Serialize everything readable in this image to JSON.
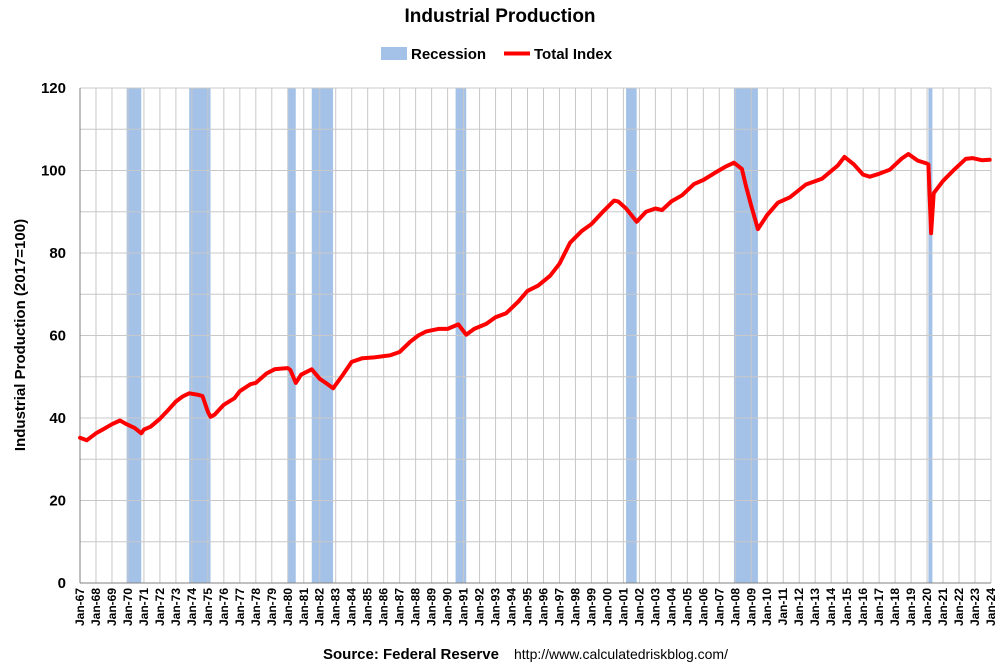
{
  "chart_data": {
    "type": "line",
    "title": "Industrial Production",
    "ylabel": "Industrial Production (2017=100)",
    "xlabel": "",
    "ylim": [
      0,
      120
    ],
    "yticks": [
      0,
      20,
      40,
      60,
      80,
      100,
      120
    ],
    "x_tick_labels": [
      "Jan-67",
      "Jan-68",
      "Jan-69",
      "Jan-70",
      "Jan-71",
      "Jan-72",
      "Jan-73",
      "Jan-74",
      "Jan-75",
      "Jan-76",
      "Jan-77",
      "Jan-78",
      "Jan-79",
      "Jan-80",
      "Jan-81",
      "Jan-82",
      "Jan-83",
      "Jan-84",
      "Jan-85",
      "Jan-86",
      "Jan-87",
      "Jan-88",
      "Jan-89",
      "Jan-90",
      "Jan-91",
      "Jan-92",
      "Jan-93",
      "Jan-94",
      "Jan-95",
      "Jan-96",
      "Jan-97",
      "Jan-98",
      "Jan-99",
      "Jan-00",
      "Jan-01",
      "Jan-02",
      "Jan-03",
      "Jan-04",
      "Jan-05",
      "Jan-06",
      "Jan-07",
      "Jan-08",
      "Jan-09",
      "Jan-10",
      "Jan-11",
      "Jan-12",
      "Jan-13",
      "Jan-14",
      "Jan-15",
      "Jan-16",
      "Jan-17",
      "Jan-18",
      "Jan-19",
      "Jan-20",
      "Jan-21",
      "Jan-22",
      "Jan-23",
      "Jan-24"
    ],
    "grid": true,
    "legend_position": "top-center",
    "legend": [
      {
        "label": "Recession",
        "color": "#a4c2e8",
        "kind": "box"
      },
      {
        "label": "Total Index",
        "color": "#ff0000",
        "kind": "line"
      }
    ],
    "recessions": [
      {
        "start": "1969-12",
        "end": "1970-11"
      },
      {
        "start": "1973-11",
        "end": "1975-03"
      },
      {
        "start": "1980-01",
        "end": "1980-07"
      },
      {
        "start": "1981-07",
        "end": "1982-11"
      },
      {
        "start": "1990-07",
        "end": "1991-03"
      },
      {
        "start": "2001-03",
        "end": "2001-11"
      },
      {
        "start": "2007-12",
        "end": "2009-06"
      },
      {
        "start": "2020-02",
        "end": "2020-04"
      }
    ],
    "series": [
      {
        "name": "Total Index",
        "color": "#ff0000",
        "points": [
          [
            "1967-01",
            35.2
          ],
          [
            "1967-06",
            34.6
          ],
          [
            "1968-01",
            36.3
          ],
          [
            "1968-06",
            37.2
          ],
          [
            "1969-01",
            38.5
          ],
          [
            "1969-07",
            39.4
          ],
          [
            "1969-12",
            38.5
          ],
          [
            "1970-06",
            37.6
          ],
          [
            "1970-11",
            36.3
          ],
          [
            "1971-01",
            37.2
          ],
          [
            "1971-06",
            37.9
          ],
          [
            "1972-01",
            39.8
          ],
          [
            "1972-06",
            41.5
          ],
          [
            "1973-01",
            44.0
          ],
          [
            "1973-06",
            45.2
          ],
          [
            "1973-11",
            46.0
          ],
          [
            "1974-06",
            45.6
          ],
          [
            "1974-09",
            45.3
          ],
          [
            "1975-01",
            41.5
          ],
          [
            "1975-03",
            40.3
          ],
          [
            "1975-06",
            40.8
          ],
          [
            "1976-01",
            43.2
          ],
          [
            "1976-09",
            44.8
          ],
          [
            "1977-01",
            46.5
          ],
          [
            "1977-09",
            48.2
          ],
          [
            "1978-01",
            48.5
          ],
          [
            "1978-09",
            50.8
          ],
          [
            "1979-03",
            51.8
          ],
          [
            "1979-09",
            52.0
          ],
          [
            "1980-01",
            52.1
          ],
          [
            "1980-03",
            51.6
          ],
          [
            "1980-07",
            48.5
          ],
          [
            "1980-11",
            50.5
          ],
          [
            "1981-07",
            51.8
          ],
          [
            "1982-01",
            49.5
          ],
          [
            "1982-06",
            48.4
          ],
          [
            "1982-11",
            47.2
          ],
          [
            "1983-06",
            50.3
          ],
          [
            "1984-01",
            53.6
          ],
          [
            "1984-09",
            54.5
          ],
          [
            "1985-06",
            54.7
          ],
          [
            "1986-01",
            55.0
          ],
          [
            "1986-06",
            55.2
          ],
          [
            "1987-01",
            56.0
          ],
          [
            "1987-09",
            58.5
          ],
          [
            "1988-03",
            60.0
          ],
          [
            "1988-09",
            61.0
          ],
          [
            "1989-06",
            61.6
          ],
          [
            "1990-01",
            61.6
          ],
          [
            "1990-09",
            62.7
          ],
          [
            "1991-03",
            60.2
          ],
          [
            "1991-09",
            61.6
          ],
          [
            "1992-06",
            62.8
          ],
          [
            "1993-01",
            64.4
          ],
          [
            "1993-09",
            65.4
          ],
          [
            "1994-06",
            68.2
          ],
          [
            "1995-01",
            70.8
          ],
          [
            "1995-09",
            72.1
          ],
          [
            "1996-06",
            74.5
          ],
          [
            "1997-01",
            77.4
          ],
          [
            "1997-09",
            82.5
          ],
          [
            "1998-06",
            85.4
          ],
          [
            "1999-01",
            87.0
          ],
          [
            "1999-09",
            89.8
          ],
          [
            "2000-06",
            92.7
          ],
          [
            "2000-09",
            92.5
          ],
          [
            "2001-03",
            90.8
          ],
          [
            "2001-11",
            87.6
          ],
          [
            "2002-06",
            90.0
          ],
          [
            "2003-01",
            90.8
          ],
          [
            "2003-06",
            90.4
          ],
          [
            "2004-01",
            92.5
          ],
          [
            "2004-09",
            94.0
          ],
          [
            "2005-06",
            96.7
          ],
          [
            "2006-01",
            97.7
          ],
          [
            "2006-09",
            99.3
          ],
          [
            "2007-06",
            101.0
          ],
          [
            "2007-12",
            101.9
          ],
          [
            "2008-06",
            100.4
          ],
          [
            "2008-09",
            96.3
          ],
          [
            "2009-01",
            91.4
          ],
          [
            "2009-06",
            85.8
          ],
          [
            "2010-01",
            89.2
          ],
          [
            "2010-09",
            92.2
          ],
          [
            "2011-06",
            93.5
          ],
          [
            "2012-06",
            96.6
          ],
          [
            "2013-06",
            98.0
          ],
          [
            "2014-06",
            101.2
          ],
          [
            "2014-11",
            103.3
          ],
          [
            "2015-06",
            101.5
          ],
          [
            "2016-01",
            99.0
          ],
          [
            "2016-06",
            98.5
          ],
          [
            "2017-01",
            99.2
          ],
          [
            "2017-09",
            100.2
          ],
          [
            "2018-06",
            102.9
          ],
          [
            "2018-11",
            104.0
          ],
          [
            "2019-06",
            102.4
          ],
          [
            "2019-12",
            101.8
          ],
          [
            "2020-02",
            101.5
          ],
          [
            "2020-04",
            84.8
          ],
          [
            "2020-06",
            94.5
          ],
          [
            "2021-01",
            97.5
          ],
          [
            "2021-09",
            100.1
          ],
          [
            "2022-06",
            102.8
          ],
          [
            "2022-11",
            103.0
          ],
          [
            "2023-06",
            102.5
          ],
          [
            "2023-12",
            102.6
          ]
        ]
      }
    ]
  },
  "source": {
    "label": "Source: Federal Reserve",
    "url": "http://www.calculatedriskblog.com/"
  }
}
